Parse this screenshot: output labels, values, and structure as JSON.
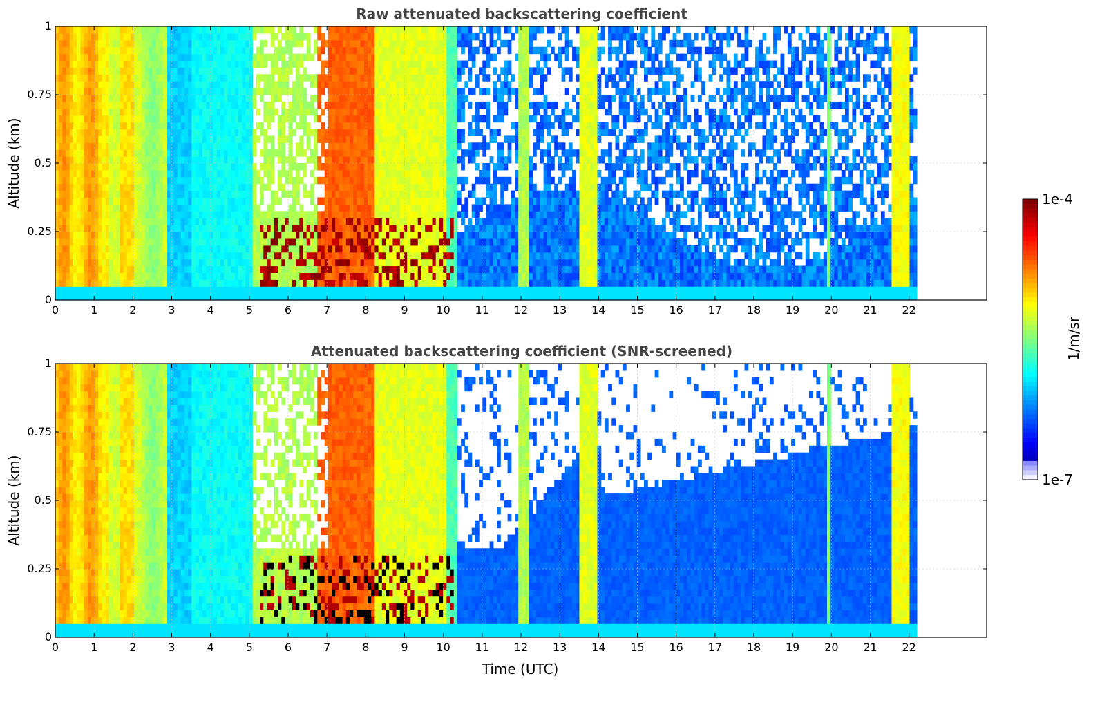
{
  "colors": {
    "colormap": "jet",
    "clear_screened": "#ffffff",
    "title_color": "#444444",
    "grid_color": "#bbbbbb"
  },
  "chart_data": [
    {
      "type": "heatmap",
      "title": "Raw attenuated backscattering coefficient",
      "xlabel": "",
      "ylabel": "Altitude (km)",
      "xlim": [
        0,
        24
      ],
      "ylim": [
        0,
        1
      ],
      "xticks": [
        "0",
        "1",
        "2",
        "3",
        "4",
        "5",
        "6",
        "7",
        "8",
        "9",
        "10",
        "11",
        "12",
        "13",
        "14",
        "15",
        "16",
        "17",
        "18",
        "19",
        "20",
        "21",
        "22"
      ],
      "yticks": [
        "0",
        "0.25",
        "0.5",
        "0.75",
        "1"
      ],
      "grid": true,
      "data_end_time": 22.2,
      "screened": false
    },
    {
      "type": "heatmap",
      "title": "Attenuated backscattering coefficient (SNR-screened)",
      "xlabel": "Time (UTC)",
      "ylabel": "Altitude (km)",
      "xlim": [
        0,
        24
      ],
      "ylim": [
        0,
        1
      ],
      "xticks": [
        "0",
        "1",
        "2",
        "3",
        "4",
        "5",
        "6",
        "7",
        "8",
        "9",
        "10",
        "11",
        "12",
        "13",
        "14",
        "15",
        "16",
        "17",
        "18",
        "19",
        "20",
        "21",
        "22"
      ],
      "yticks": [
        "0",
        "0.25",
        "0.5",
        "0.75",
        "1"
      ],
      "grid": true,
      "data_end_time": 22.2,
      "screened": true
    }
  ],
  "colorbar": {
    "label": "1/m/sr",
    "max_label": "1e-4",
    "min_label": "1e-7",
    "scale": "log",
    "range": [
      1e-07,
      0.0001
    ]
  }
}
